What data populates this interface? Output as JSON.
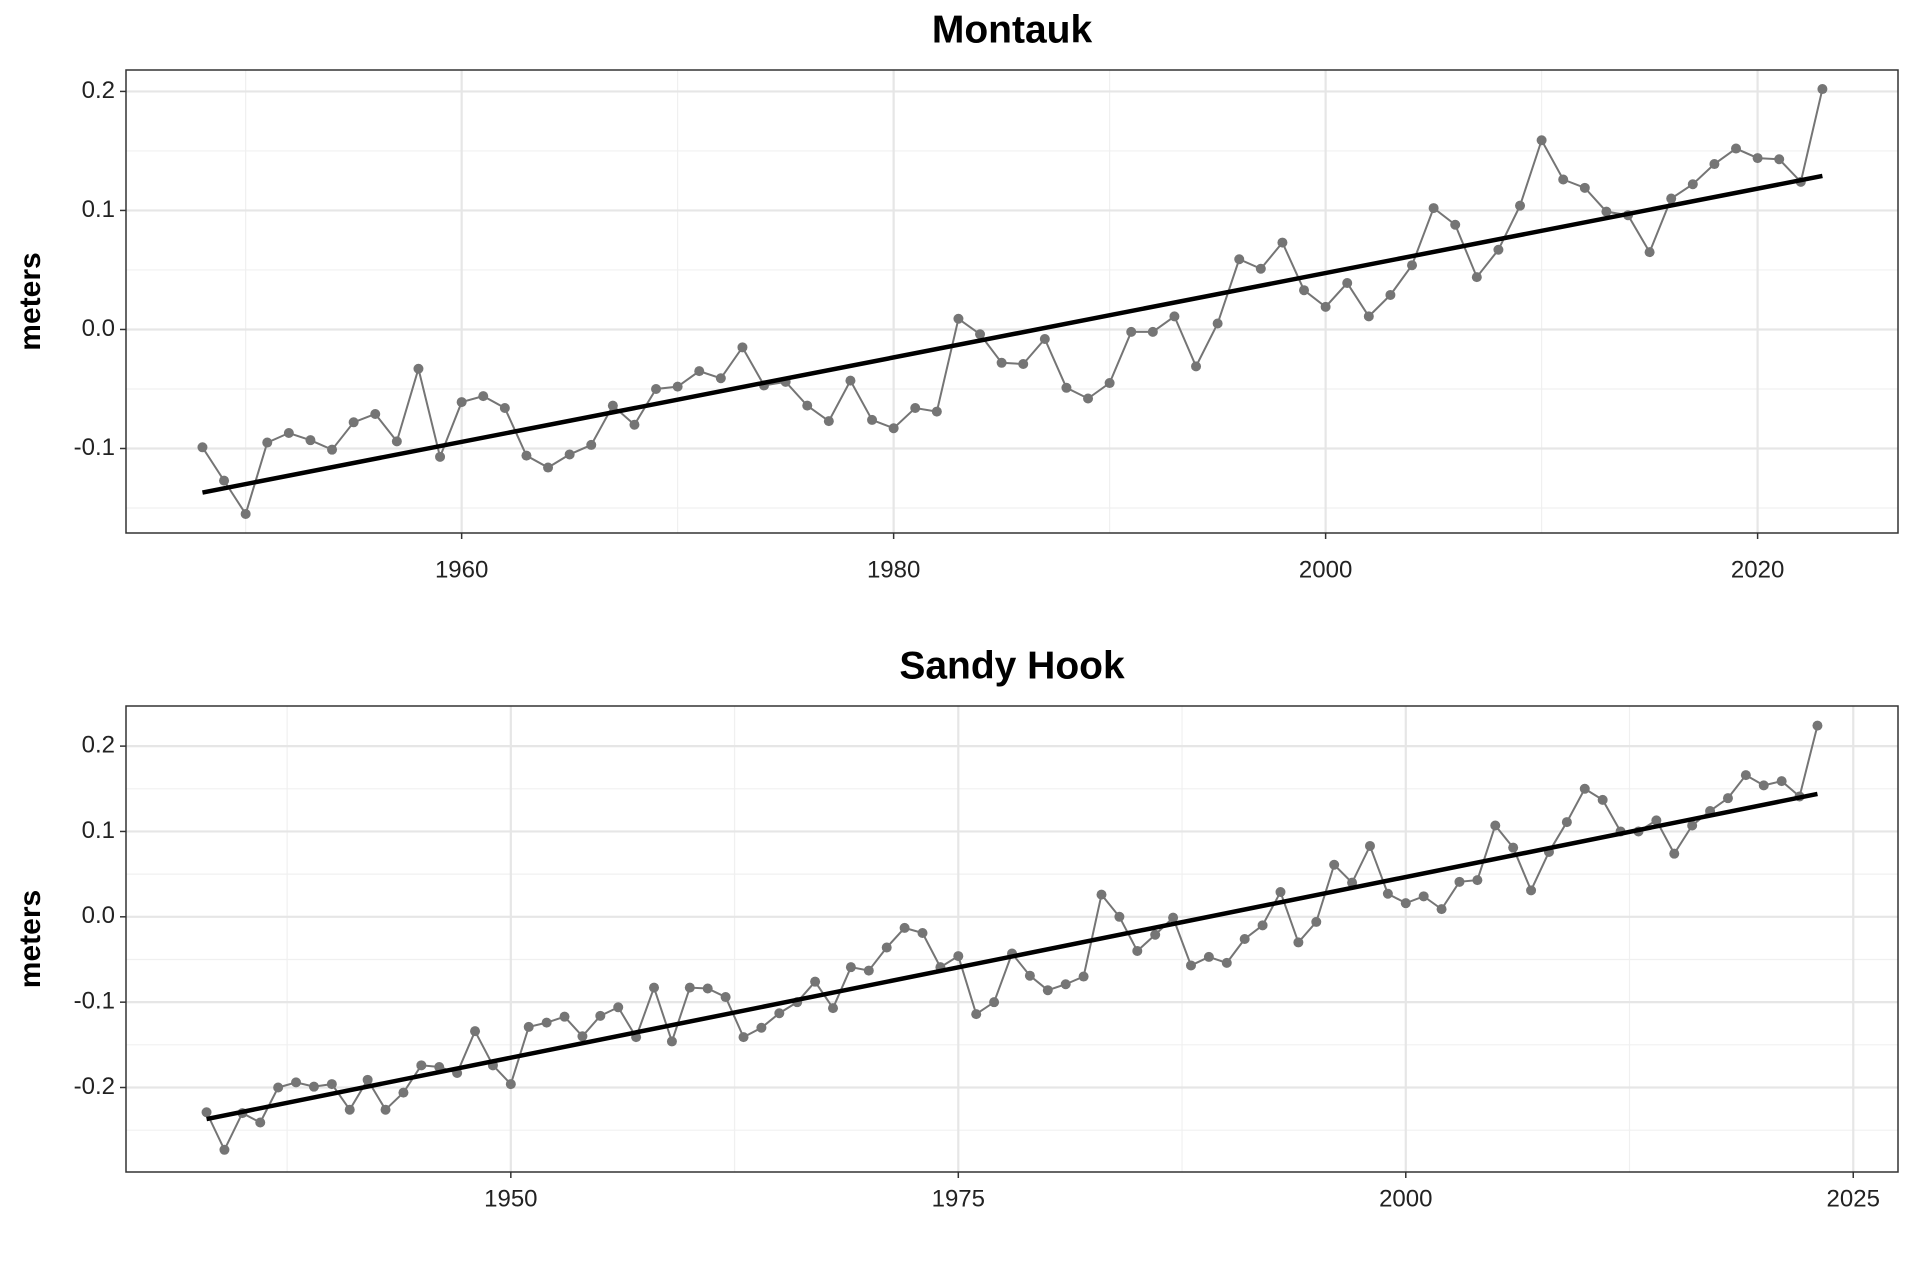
{
  "chart_data": [
    {
      "type": "line",
      "title": "Montauk",
      "y_label": "meters",
      "x": [
        1948,
        1949,
        1950,
        1951,
        1952,
        1953,
        1954,
        1955,
        1956,
        1957,
        1958,
        1959,
        1960,
        1961,
        1962,
        1963,
        1964,
        1965,
        1966,
        1967,
        1968,
        1969,
        1970,
        1971,
        1972,
        1973,
        1974,
        1975,
        1976,
        1977,
        1978,
        1979,
        1980,
        1981,
        1982,
        1983,
        1984,
        1985,
        1986,
        1987,
        1988,
        1989,
        1990,
        1991,
        1992,
        1993,
        1994,
        1995,
        1996,
        1997,
        1998,
        1999,
        2000,
        2001,
        2002,
        2003,
        2004,
        2005,
        2006,
        2007,
        2008,
        2009,
        2010,
        2011,
        2012,
        2013,
        2014,
        2015,
        2016,
        2017,
        2018,
        2019,
        2020,
        2021,
        2022,
        2023
      ],
      "series": [
        {
          "color": "#757575",
          "values": [
            -0.099,
            -0.127,
            -0.155,
            -0.095,
            -0.087,
            -0.093,
            -0.101,
            -0.078,
            -0.071,
            -0.094,
            -0.033,
            -0.107,
            -0.061,
            -0.056,
            -0.066,
            -0.106,
            -0.116,
            -0.105,
            -0.097,
            -0.064,
            -0.08,
            -0.05,
            -0.048,
            -0.035,
            -0.041,
            -0.015,
            -0.047,
            -0.044,
            -0.064,
            -0.077,
            -0.043,
            -0.076,
            -0.083,
            -0.066,
            -0.069,
            0.009,
            -0.004,
            -0.028,
            -0.029,
            -0.008,
            -0.049,
            -0.058,
            -0.045,
            -0.002,
            -0.002,
            0.011,
            -0.031,
            0.005,
            0.059,
            0.051,
            0.073,
            0.033,
            0.019,
            0.039,
            0.011,
            0.029,
            0.054,
            0.102,
            0.088,
            0.044,
            0.067,
            0.104,
            0.159,
            0.126,
            0.119,
            0.099,
            0.096,
            0.065,
            0.11,
            0.122,
            0.139,
            0.152,
            0.144,
            0.143,
            0.124,
            0.202
          ]
        }
      ],
      "trend": {
        "x": [
          1948,
          2023
        ],
        "values": [
          -0.137,
          0.129
        ],
        "color": "#000000"
      },
      "xlim": [
        1944.46,
        2026.5
      ],
      "ylim": [
        -0.171,
        0.218
      ],
      "xticks": [
        1960,
        1980,
        2000,
        2020
      ],
      "xminor": [
        1950,
        1970,
        1990,
        2010
      ],
      "yticks": [
        -0.1,
        {
          "value": 0,
          "label": "0.0"
        },
        0.1,
        0.2
      ],
      "yminor": [
        -0.15,
        -0.05,
        0.05,
        0.15
      ],
      "grid": true
    },
    {
      "type": "line",
      "title": "Sandy Hook",
      "y_label": "meters",
      "x": [
        1933,
        1934,
        1935,
        1936,
        1937,
        1938,
        1939,
        1940,
        1941,
        1942,
        1943,
        1944,
        1945,
        1946,
        1947,
        1948,
        1949,
        1950,
        1951,
        1952,
        1953,
        1954,
        1955,
        1956,
        1957,
        1958,
        1959,
        1960,
        1961,
        1962,
        1963,
        1964,
        1965,
        1966,
        1967,
        1968,
        1969,
        1970,
        1971,
        1972,
        1973,
        1974,
        1975,
        1976,
        1977,
        1978,
        1979,
        1980,
        1981,
        1982,
        1983,
        1984,
        1985,
        1986,
        1987,
        1988,
        1989,
        1990,
        1991,
        1992,
        1993,
        1994,
        1995,
        1996,
        1997,
        1998,
        1999,
        2000,
        2001,
        2002,
        2003,
        2004,
        2005,
        2006,
        2007,
        2008,
        2009,
        2010,
        2011,
        2012,
        2013,
        2014,
        2015,
        2016,
        2017,
        2018,
        2019,
        2020,
        2021,
        2022,
        2023
      ],
      "series": [
        {
          "color": "#757575",
          "values": [
            -0.229,
            -0.273,
            -0.23,
            -0.241,
            -0.2,
            -0.194,
            -0.199,
            -0.196,
            -0.226,
            -0.191,
            -0.226,
            -0.206,
            -0.174,
            -0.176,
            -0.183,
            -0.134,
            -0.174,
            -0.196,
            -0.129,
            -0.124,
            -0.117,
            -0.14,
            -0.116,
            -0.106,
            -0.141,
            -0.083,
            -0.146,
            -0.083,
            -0.084,
            -0.094,
            -0.141,
            -0.13,
            -0.113,
            -0.1,
            -0.076,
            -0.107,
            -0.059,
            -0.063,
            -0.036,
            -0.013,
            -0.019,
            -0.059,
            -0.046,
            -0.114,
            -0.1,
            -0.043,
            -0.069,
            -0.086,
            -0.079,
            -0.07,
            0.026,
            0.0,
            -0.04,
            -0.021,
            -0.001,
            -0.057,
            -0.047,
            -0.054,
            -0.026,
            -0.01,
            0.029,
            -0.03,
            -0.006,
            0.061,
            0.04,
            0.083,
            0.027,
            0.016,
            0.024,
            0.009,
            0.041,
            0.043,
            0.107,
            0.081,
            0.031,
            0.076,
            0.111,
            0.15,
            0.137,
            0.1,
            0.1,
            0.113,
            0.074,
            0.107,
            0.124,
            0.139,
            0.166,
            0.154,
            0.159,
            0.141,
            0.224
          ]
        }
      ],
      "trend": {
        "x": [
          1933,
          2023
        ],
        "values": [
          -0.237,
          0.144
        ],
        "color": "#000000"
      },
      "xlim": [
        1928.5,
        2027.5
      ],
      "ylim": [
        -0.299,
        0.247
      ],
      "xticks": [
        1950,
        1975,
        2000,
        2025
      ],
      "xminor": [
        1937.5,
        1962.5,
        1987.5,
        2012.5
      ],
      "yticks": [
        -0.2,
        -0.1,
        {
          "value": 0,
          "label": "0.0"
        },
        0.1,
        0.2
      ],
      "yminor": [
        -0.25,
        -0.15,
        -0.05,
        0.05,
        0.15
      ],
      "grid": true
    }
  ]
}
